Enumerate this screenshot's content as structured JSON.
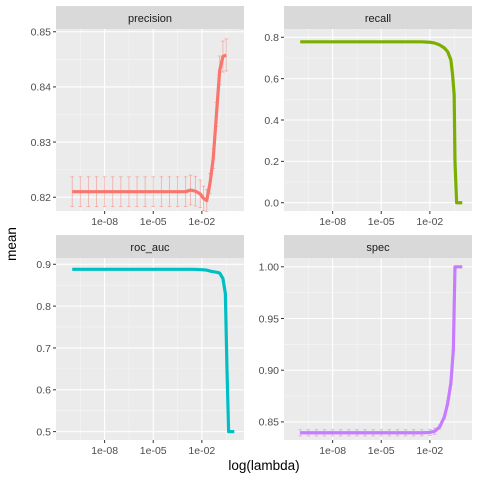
{
  "chart_data": {
    "type": "line",
    "xlabel": "log(lambda)",
    "ylabel": "mean",
    "x_scale": "log10",
    "x_ticks": [
      {
        "value": 1e-08,
        "label": "1e-08"
      },
      {
        "value": 1e-05,
        "label": "1e-05"
      },
      {
        "value": 0.01,
        "label": "1e-02"
      }
    ],
    "grid": true,
    "legend": "none",
    "panels": [
      {
        "title": "precision",
        "color": "#F8766D",
        "xlim_log10": [
          -11.0,
          0.6
        ],
        "ylim": [
          0.8175,
          0.8505
        ],
        "y_ticks": [
          {
            "value": 0.82,
            "label": "0.82"
          },
          {
            "value": 0.83,
            "label": "0.83"
          },
          {
            "value": 0.84,
            "label": "0.84"
          },
          {
            "value": 0.85,
            "label": "0.85"
          }
        ],
        "x_log10": [
          -10,
          -9.5,
          -9,
          -8.5,
          -8,
          -7.5,
          -7,
          -6.5,
          -6,
          -5.5,
          -5,
          -4.5,
          -4,
          -3.5,
          -3,
          -2.7,
          -2.4,
          -2.1,
          -1.9,
          -1.7,
          -1.5,
          -1.3,
          -1.1,
          -0.9,
          -0.7,
          -0.5
        ],
        "mean": [
          0.821,
          0.821,
          0.821,
          0.821,
          0.821,
          0.821,
          0.821,
          0.821,
          0.821,
          0.821,
          0.821,
          0.821,
          0.821,
          0.821,
          0.821,
          0.8213,
          0.8211,
          0.8206,
          0.8198,
          0.8194,
          0.8225,
          0.827,
          0.835,
          0.843,
          0.8455,
          0.8458
        ],
        "err": [
          0.0027,
          0.0027,
          0.0027,
          0.0027,
          0.0027,
          0.0027,
          0.0027,
          0.0027,
          0.0027,
          0.0027,
          0.0027,
          0.0027,
          0.0027,
          0.0027,
          0.0027,
          0.0027,
          0.0027,
          0.0025,
          0.0022,
          0.002,
          0.0018,
          0.0018,
          0.0022,
          0.0026,
          0.0028,
          0.0029
        ]
      },
      {
        "title": "recall",
        "color": "#7CAE00",
        "xlim_log10": [
          -11.0,
          0.6
        ],
        "ylim": [
          -0.04,
          0.84
        ],
        "y_ticks": [
          {
            "value": 0.0,
            "label": "0.0"
          },
          {
            "value": 0.2,
            "label": "0.2"
          },
          {
            "value": 0.4,
            "label": "0.4"
          },
          {
            "value": 0.6,
            "label": "0.6"
          },
          {
            "value": 0.8,
            "label": "0.8"
          }
        ],
        "x_log10": [
          -10,
          -9,
          -8,
          -7,
          -6,
          -5,
          -4,
          -3,
          -2.5,
          -2,
          -1.7,
          -1.4,
          -1.1,
          -0.9,
          -0.7,
          -0.6,
          -0.5,
          -0.45,
          -0.35,
          -0.2,
          0
        ],
        "mean": [
          0.778,
          0.778,
          0.778,
          0.778,
          0.778,
          0.778,
          0.778,
          0.778,
          0.778,
          0.776,
          0.772,
          0.763,
          0.748,
          0.73,
          0.69,
          0.62,
          0.52,
          0.2,
          0.0,
          0.0,
          0.0
        ],
        "err": []
      },
      {
        "title": "roc_auc",
        "color": "#00BFC4",
        "xlim_log10": [
          -11.0,
          0.6
        ],
        "ylim": [
          0.48,
          0.915
        ],
        "y_ticks": [
          {
            "value": 0.5,
            "label": "0.5"
          },
          {
            "value": 0.6,
            "label": "0.6"
          },
          {
            "value": 0.7,
            "label": "0.7"
          },
          {
            "value": 0.8,
            "label": "0.8"
          },
          {
            "value": 0.9,
            "label": "0.9"
          }
        ],
        "x_log10": [
          -10,
          -9,
          -8,
          -7,
          -6,
          -5,
          -4,
          -3,
          -2.5,
          -2,
          -1.7,
          -1.4,
          -1.1,
          -0.9,
          -0.7,
          -0.55,
          -0.45,
          -0.35,
          -0.2,
          0
        ],
        "mean": [
          0.888,
          0.888,
          0.888,
          0.888,
          0.888,
          0.888,
          0.888,
          0.888,
          0.888,
          0.887,
          0.886,
          0.883,
          0.881,
          0.879,
          0.866,
          0.83,
          0.65,
          0.5,
          0.5,
          0.5
        ],
        "err": []
      },
      {
        "title": "spec",
        "color": "#C77CFF",
        "xlim_log10": [
          -11.0,
          0.6
        ],
        "ylim": [
          0.8325,
          1.0085
        ],
        "y_ticks": [
          {
            "value": 0.85,
            "label": "0.85"
          },
          {
            "value": 0.9,
            "label": "0.90"
          },
          {
            "value": 0.95,
            "label": "0.95"
          },
          {
            "value": 1.0,
            "label": "1.00"
          }
        ],
        "x_log10": [
          -10,
          -9.5,
          -9,
          -8.5,
          -8,
          -7.5,
          -7,
          -6.5,
          -6,
          -5.5,
          -5,
          -4.5,
          -4,
          -3.5,
          -3,
          -2.5,
          -2,
          -1.7,
          -1.4,
          -1.1,
          -0.9,
          -0.7,
          -0.55,
          -0.45,
          -0.35,
          -0.2,
          0
        ],
        "mean": [
          0.8395,
          0.8395,
          0.8395,
          0.8395,
          0.8395,
          0.8395,
          0.8395,
          0.8395,
          0.8395,
          0.8395,
          0.8395,
          0.8395,
          0.8395,
          0.8395,
          0.8395,
          0.8395,
          0.8398,
          0.841,
          0.845,
          0.855,
          0.868,
          0.888,
          0.92,
          1.0,
          1.0,
          1.0,
          1.0
        ],
        "err": [
          0.003,
          0.003,
          0.003,
          0.003,
          0.003,
          0.003,
          0.003,
          0.003,
          0.003,
          0.003,
          0.003,
          0.003,
          0.003,
          0.003,
          0.003,
          0.003,
          0.003,
          0.003,
          0.002,
          0.002,
          0.002,
          0.002,
          0.001,
          0.0,
          0.0,
          0.0,
          0.0
        ]
      }
    ]
  }
}
